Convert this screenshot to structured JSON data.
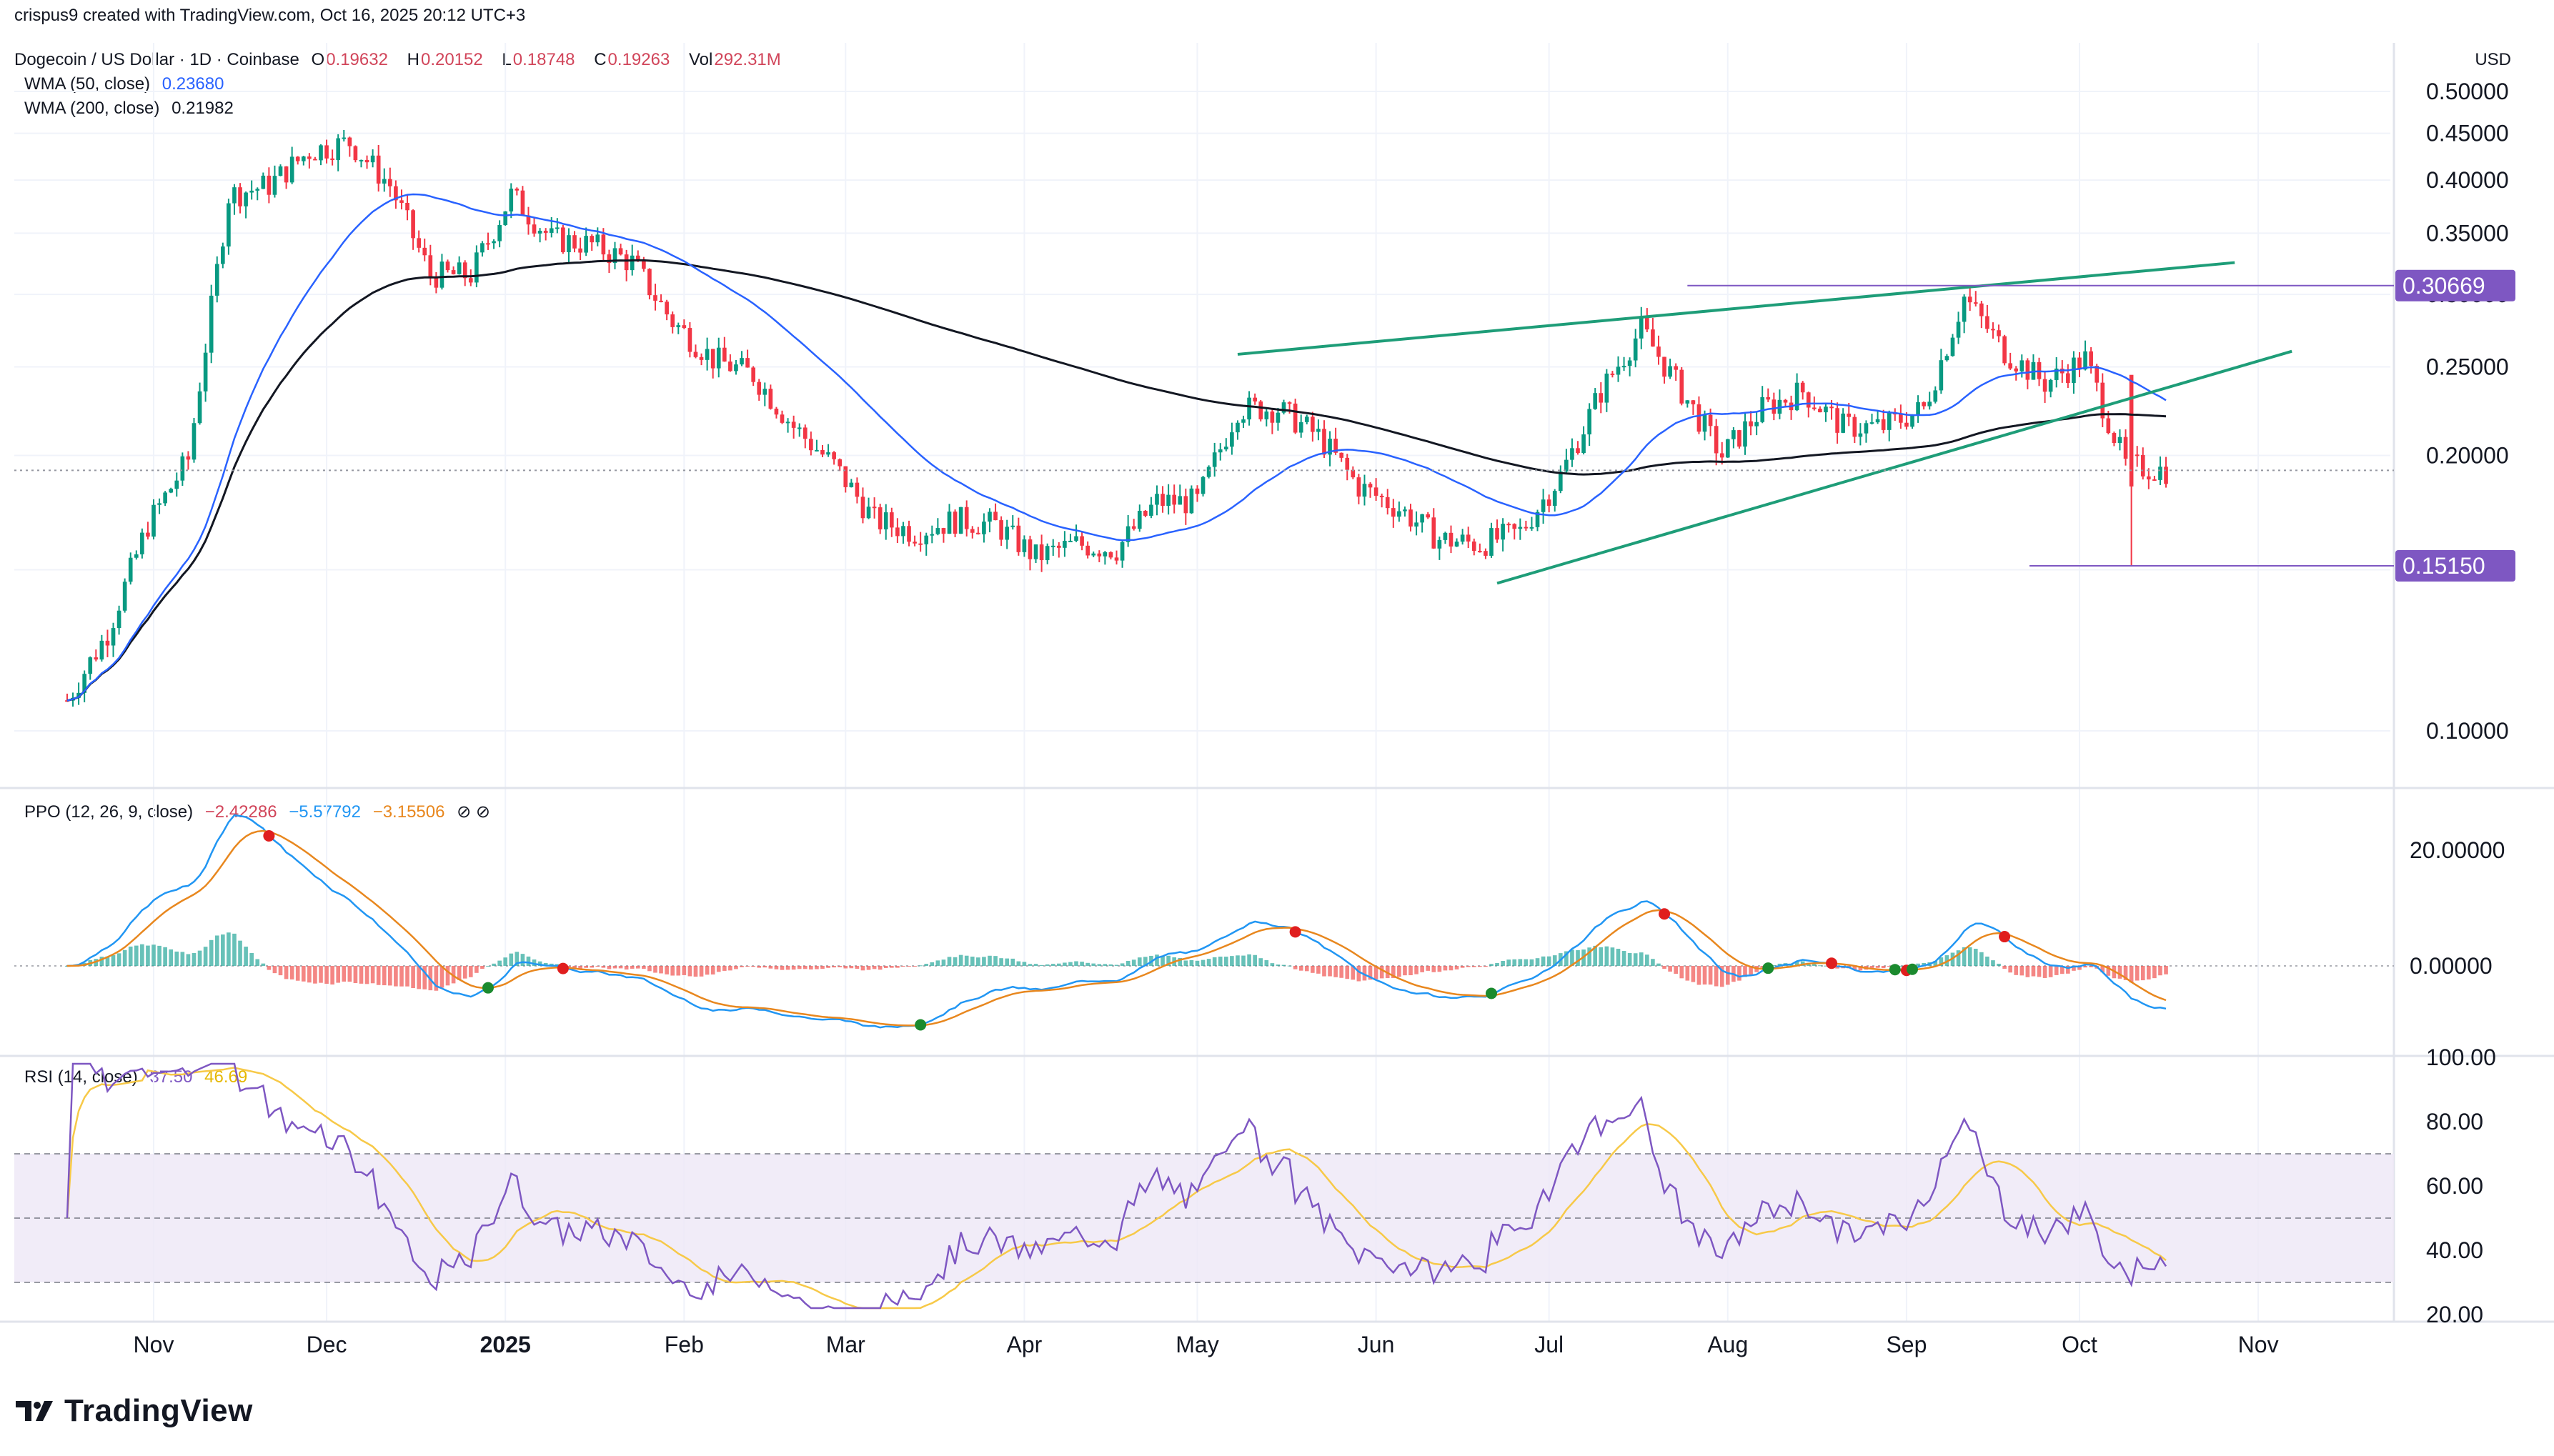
{
  "header": {
    "text": "crispus9 created with TradingView.com, Oct 16, 2025 20:12 UTC+3"
  },
  "main_legend": {
    "title": "Dogecoin / US Dollar · 1D · Coinbase",
    "o_label": "O",
    "o": "0.19632",
    "h_label": "H",
    "h": "0.20152",
    "l_label": "L",
    "l": "0.18748",
    "c_label": "C",
    "c": "0.19263",
    "vol_label": "Vol",
    "vol": "292.31M"
  },
  "wma50_legend": {
    "label": "WMA (50, close)",
    "value": "0.23680"
  },
  "wma200_legend": {
    "label": "WMA (200, close)",
    "value": "0.21982"
  },
  "ppo_legend": {
    "label": "PPO (12, 26, 9, close)",
    "v1": "−2.42286",
    "v2": "−5.57792",
    "v3": "−3.15506",
    "icons": "⊘ ⊘"
  },
  "rsi_legend": {
    "label": "RSI (14, close)",
    "v1": "37.50",
    "v2": "46.69"
  },
  "currency": "USD",
  "logo": {
    "text": "TradingView"
  },
  "colors": {
    "up": "#089981",
    "down": "#f23645",
    "wma50": "#2962ff",
    "wma200": "#131722",
    "trend": "#1e9d78",
    "level": "#7e57c2",
    "rsi": "#7e57c2",
    "rsi_ma": "#f7c948",
    "ppo_fast": "#2196f3",
    "ppo_signal": "#e8871e"
  },
  "chart_data": [
    {
      "type": "candlestick",
      "title": "Dogecoin / US Dollar · 1D · Coinbase",
      "x": [
        "2024-10-17",
        "2024-10-24",
        "2024-10-31",
        "2024-11-07",
        "2024-11-14",
        "2024-11-21",
        "2024-11-28",
        "2024-12-05",
        "2024-12-12",
        "2024-12-19",
        "2024-12-26",
        "2025-01-02",
        "2025-01-09",
        "2025-01-16",
        "2025-01-23",
        "2025-01-30",
        "2025-02-06",
        "2025-02-13",
        "2025-02-20",
        "2025-02-27",
        "2025-03-06",
        "2025-03-13",
        "2025-03-20",
        "2025-03-27",
        "2025-04-03",
        "2025-04-10",
        "2025-04-17",
        "2025-04-24",
        "2025-05-01",
        "2025-05-08",
        "2025-05-15",
        "2025-05-22",
        "2025-05-29",
        "2025-06-05",
        "2025-06-12",
        "2025-06-19",
        "2025-06-26",
        "2025-07-03",
        "2025-07-10",
        "2025-07-17",
        "2025-07-24",
        "2025-07-31",
        "2025-08-07",
        "2025-08-14",
        "2025-08-21",
        "2025-08-28",
        "2025-09-04",
        "2025-09-11",
        "2025-09-18",
        "2025-09-25",
        "2025-10-02",
        "2025-10-09",
        "2025-10-16"
      ],
      "close": [
        0.108,
        0.128,
        0.168,
        0.198,
        0.385,
        0.395,
        0.43,
        0.44,
        0.395,
        0.315,
        0.315,
        0.385,
        0.345,
        0.34,
        0.325,
        0.28,
        0.255,
        0.245,
        0.215,
        0.195,
        0.17,
        0.165,
        0.17,
        0.168,
        0.155,
        0.16,
        0.158,
        0.178,
        0.178,
        0.225,
        0.225,
        0.21,
        0.185,
        0.175,
        0.162,
        0.16,
        0.165,
        0.19,
        0.235,
        0.275,
        0.235,
        0.2,
        0.225,
        0.235,
        0.215,
        0.215,
        0.225,
        0.298,
        0.26,
        0.24,
        0.255,
        0.195,
        0.1926
      ],
      "yaxis_ticks": [
        "0.50000",
        "0.45000",
        "0.40000",
        "0.35000",
        "0.30000",
        "0.25000",
        "0.20000",
        "0.15000",
        "0.10000"
      ],
      "price_labels": [
        {
          "value": "0.30669"
        },
        {
          "value": "0.15150"
        }
      ],
      "wma50_final": 0.2368,
      "wma200_final": 0.21982,
      "ylim": [
        0.07,
        0.5
      ]
    },
    {
      "type": "line",
      "title": "PPO (12, 26, 9, close)",
      "yaxis_ticks": [
        "20.00000",
        "0.00000"
      ],
      "ylim": [
        -12,
        28
      ]
    },
    {
      "type": "line",
      "title": "RSI (14, close)",
      "yaxis_ticks": [
        "100.00",
        "80.00",
        "60.00",
        "40.00",
        "20.00"
      ],
      "bands": [
        30,
        50,
        70
      ],
      "ylim": [
        20,
        100
      ]
    }
  ],
  "time_axis": {
    "labels": [
      {
        "text": "Nov",
        "bold": false
      },
      {
        "text": "Dec",
        "bold": false
      },
      {
        "text": "2025",
        "bold": true
      },
      {
        "text": "Feb",
        "bold": false
      },
      {
        "text": "Mar",
        "bold": false
      },
      {
        "text": "Apr",
        "bold": false
      },
      {
        "text": "May",
        "bold": false
      },
      {
        "text": "Jun",
        "bold": false
      },
      {
        "text": "Jul",
        "bold": false
      },
      {
        "text": "Aug",
        "bold": false
      },
      {
        "text": "Sep",
        "bold": false
      },
      {
        "text": "Oct",
        "bold": false
      },
      {
        "text": "Nov",
        "bold": false
      }
    ]
  }
}
